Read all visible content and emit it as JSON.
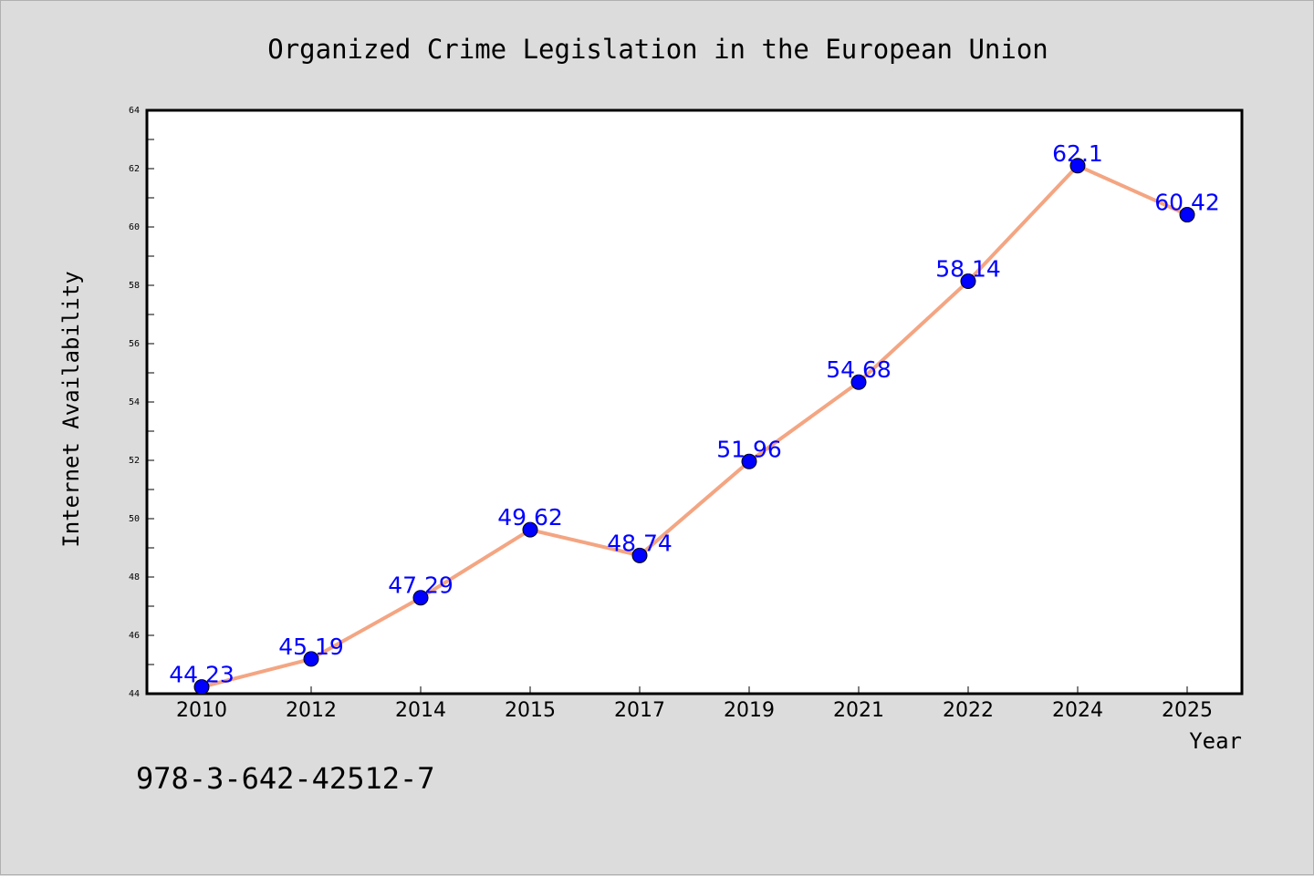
{
  "chart_data": {
    "type": "line",
    "title": "Organized Crime Legislation in the European Union",
    "xlabel": "Year",
    "ylabel": "Internet Availability",
    "categories": [
      "2010",
      "2012",
      "2014",
      "2015",
      "2017",
      "2019",
      "2021",
      "2022",
      "2024",
      "2025"
    ],
    "series": [
      {
        "values": [
          44.23,
          45.19,
          47.29,
          49.62,
          48.74,
          51.96,
          54.68,
          58.14,
          62.1,
          60.42
        ],
        "labels": [
          "44.23",
          "45.19",
          "47.29",
          "49.62",
          "48.74",
          "51.96",
          "54.68",
          "58.14",
          "62.1",
          "60.42"
        ]
      }
    ],
    "ylim": [
      44,
      64
    ],
    "yticks": [
      "44",
      "46",
      "48",
      "50",
      "52",
      "54",
      "56",
      "58",
      "60",
      "62",
      "64"
    ],
    "grid": false,
    "colors": {
      "line": "#f4a582",
      "marker": "#0000ff",
      "data_label": "#0000ff",
      "background": "#dcdcdc",
      "plot_background": "#ffffff"
    }
  },
  "annotation": {
    "isbn": "978-3-642-42512-7"
  }
}
